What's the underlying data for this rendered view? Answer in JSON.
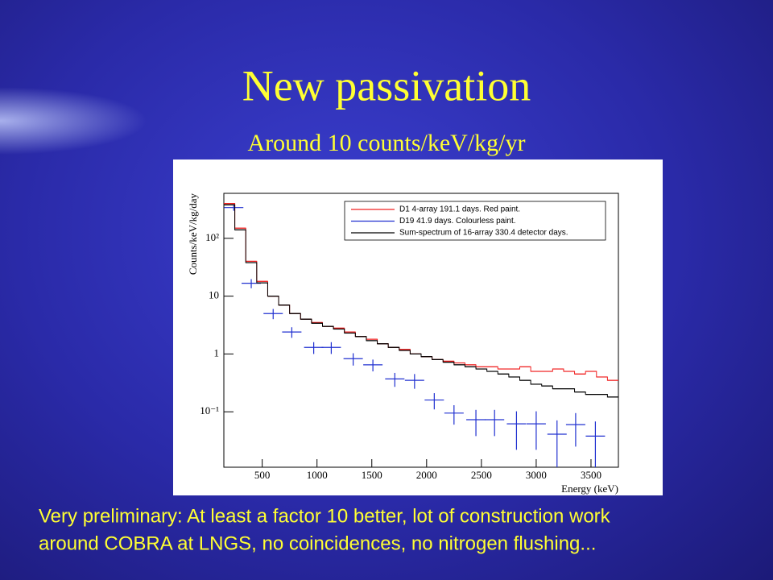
{
  "slide": {
    "title": "New passivation",
    "subtitle": "Around 10 counts/keV/kg/yr",
    "caption": [
      "Very preliminary: At least a factor 10 better, lot of construction work",
      "around COBRA at LNGS, no coincidences, no nitrogen flushing..."
    ]
  },
  "chart_data": {
    "type": "histogram-log",
    "xlabel": "Energy (keV)",
    "ylabel": "Counts/keV/kg/day",
    "xlim": [
      150,
      3750
    ],
    "xticks": [
      500,
      1000,
      1500,
      2000,
      2500,
      3000,
      3500
    ],
    "ylim": [
      0.011,
      600
    ],
    "log_y": true,
    "yticks": [
      {
        "value": 0.1,
        "label": "10⁻¹"
      },
      1,
      10,
      {
        "value": 100,
        "label": "10²"
      }
    ],
    "legend": "top-right",
    "series": [
      {
        "name": "D1 4-array 191.1 days. Red paint.",
        "color": "#f02020",
        "style": "step",
        "x": [
          200,
          300,
          400,
          500,
          600,
          700,
          800,
          900,
          1000,
          1100,
          1200,
          1300,
          1400,
          1500,
          1600,
          1700,
          1800,
          1900,
          2000,
          2100,
          2200,
          2300,
          2400,
          2500,
          2600,
          2700,
          2800,
          2900,
          3000,
          3100,
          3200,
          3300,
          3400,
          3500,
          3600,
          3700
        ],
        "values": [
          400,
          150,
          40,
          18,
          10,
          7,
          5,
          4,
          3.5,
          3,
          2.8,
          2.4,
          2,
          1.8,
          1.5,
          1.3,
          1.2,
          1.0,
          0.9,
          0.8,
          0.75,
          0.7,
          0.65,
          0.6,
          0.6,
          0.55,
          0.55,
          0.6,
          0.5,
          0.5,
          0.55,
          0.5,
          0.45,
          0.5,
          0.4,
          0.35
        ]
      },
      {
        "name": "D19 41.9 days. Colourless paint.",
        "color": "#2030d0",
        "style": "errorbar",
        "x": [
          240,
          400,
          600,
          770,
          970,
          1130,
          1330,
          1510,
          1710,
          1890,
          2070,
          2250,
          2450,
          2620,
          2820,
          3000,
          3190,
          3360,
          3540
        ],
        "values": [
          340,
          16.7,
          5,
          2.4,
          1.3,
          1.3,
          0.83,
          0.65,
          0.37,
          0.35,
          0.16,
          0.095,
          0.073,
          0.073,
          0.062,
          0.062,
          0.041,
          0.06,
          0.038
        ],
        "errors": [
          40,
          3,
          1,
          0.5,
          0.3,
          0.3,
          0.2,
          0.15,
          0.1,
          0.1,
          0.05,
          0.035,
          0.035,
          0.035,
          0.04,
          0.04,
          0.03,
          0.035,
          0.03
        ]
      },
      {
        "name": "Sum-spectrum of 16-array 330.4 detector days.",
        "color": "#000000",
        "style": "step",
        "x": [
          200,
          300,
          400,
          500,
          600,
          700,
          800,
          900,
          1000,
          1100,
          1200,
          1300,
          1400,
          1500,
          1600,
          1700,
          1800,
          1900,
          2000,
          2100,
          2200,
          2300,
          2400,
          2500,
          2600,
          2700,
          2800,
          2900,
          3000,
          3100,
          3200,
          3300,
          3400,
          3500,
          3600,
          3700
        ],
        "values": [
          380,
          140,
          38,
          17,
          10,
          7,
          5,
          4,
          3.4,
          3,
          2.7,
          2.3,
          2,
          1.7,
          1.5,
          1.3,
          1.15,
          1.0,
          0.9,
          0.8,
          0.72,
          0.65,
          0.6,
          0.55,
          0.5,
          0.45,
          0.4,
          0.35,
          0.3,
          0.28,
          0.25,
          0.25,
          0.22,
          0.2,
          0.2,
          0.18
        ]
      }
    ]
  }
}
